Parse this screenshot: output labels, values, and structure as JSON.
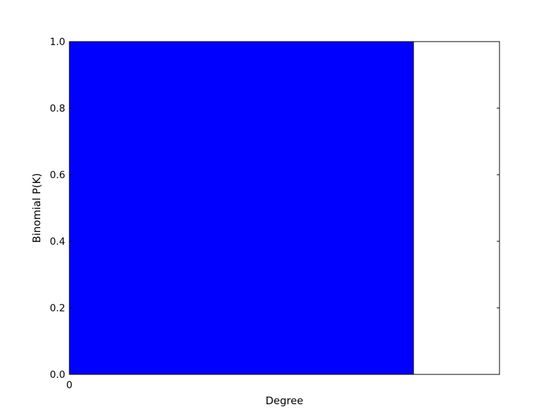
{
  "chart_data": {
    "type": "bar",
    "title": "",
    "xlabel": "Degree",
    "ylabel": "Binomial P(K)",
    "categories": [
      "0"
    ],
    "x_tick_labels": [
      "0"
    ],
    "values": [
      1.0
    ],
    "ylim": [
      0,
      1.0
    ],
    "y_ticks": [
      0.0,
      0.2,
      0.4,
      0.6,
      0.8,
      1.0
    ],
    "y_tick_labels": [
      "0.0",
      "0.2",
      "0.4",
      "0.6",
      "0.8",
      "1.0"
    ],
    "bar_color": "#0000ff",
    "grid": false,
    "legend": "none"
  }
}
